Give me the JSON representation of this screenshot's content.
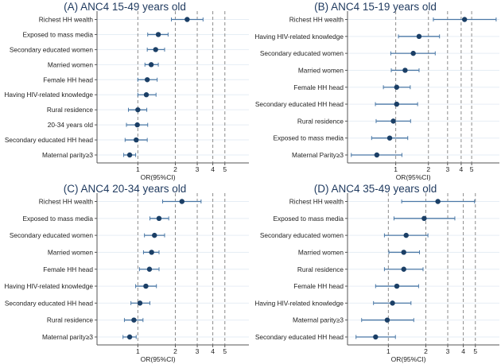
{
  "chart_data": [
    {
      "type": "forest",
      "title": "(A) ANC4 15-49 years old",
      "xlabel": "OR(95%CI)",
      "xscale": "log",
      "xticks": [
        1,
        2,
        3,
        4,
        5
      ],
      "xlim": [
        0.47,
        7.8
      ],
      "reference_lines": [
        1,
        2,
        3,
        4,
        5
      ],
      "rows": [
        {
          "label": "Richest HH wealth",
          "or": 2.49,
          "lo": 1.86,
          "hi": 3.34
        },
        {
          "label": "Exposed to mass media",
          "or": 1.46,
          "lo": 1.2,
          "hi": 1.75
        },
        {
          "label": "Secondary educated women",
          "or": 1.39,
          "lo": 1.19,
          "hi": 1.64
        },
        {
          "label": "Married women",
          "or": 1.28,
          "lo": 1.14,
          "hi": 1.46
        },
        {
          "label": "Female HH head",
          "or": 1.19,
          "lo": 1.0,
          "hi": 1.43
        },
        {
          "label": "Having HIV-related knowledge",
          "or": 1.17,
          "lo": 1.0,
          "hi": 1.4
        },
        {
          "label": "Rural residence",
          "or": 1.0,
          "lo": 0.84,
          "hi": 1.18
        },
        {
          "label": "20-34 years old",
          "or": 0.99,
          "lo": 0.81,
          "hi": 1.2
        },
        {
          "label": "Secondary educated HH head",
          "or": 0.97,
          "lo": 0.79,
          "hi": 1.19
        },
        {
          "label": "Maternal parity≥3",
          "or": 0.86,
          "lo": 0.77,
          "hi": 0.96
        }
      ]
    },
    {
      "type": "forest",
      "title": "(B) ANC4 15-19 years old",
      "xlabel": "OR(95%CI)",
      "xscale": "log",
      "xticks": [
        1,
        2,
        3,
        4,
        5
      ],
      "xlim": [
        0.36,
        9.0
      ],
      "reference_lines": [
        1,
        2,
        3,
        4,
        5
      ],
      "rows": [
        {
          "label": "Richest HH wealth",
          "or": 4.3,
          "lo": 2.22,
          "hi": 8.4
        },
        {
          "label": "Having HIV-related knowledge",
          "or": 1.64,
          "lo": 1.06,
          "hi": 2.53
        },
        {
          "label": "Secondary educated women",
          "or": 1.45,
          "lo": 0.9,
          "hi": 2.31
        },
        {
          "label": "Married women",
          "or": 1.22,
          "lo": 0.91,
          "hi": 1.64
        },
        {
          "label": "Female HH head",
          "or": 1.02,
          "lo": 0.77,
          "hi": 1.36
        },
        {
          "label": "Secondary educated HH head",
          "or": 1.02,
          "lo": 0.65,
          "hi": 1.59
        },
        {
          "label": "Rural residence",
          "or": 0.95,
          "lo": 0.66,
          "hi": 1.37
        },
        {
          "label": "Exposed to mass media",
          "or": 0.88,
          "lo": 0.6,
          "hi": 1.29
        },
        {
          "label": "Maternal Parity≥3",
          "or": 0.67,
          "lo": 0.39,
          "hi": 1.14
        }
      ]
    },
    {
      "type": "forest",
      "title": "(C) ANC4 20-34 years old",
      "xlabel": "OR(95%CI)",
      "xscale": "log",
      "xticks": [
        1,
        2,
        3,
        4,
        5
      ],
      "xlim": [
        0.47,
        7.8
      ],
      "reference_lines": [
        1,
        2,
        3,
        4,
        5
      ],
      "rows": [
        {
          "label": "Richest HH wealth",
          "or": 2.26,
          "lo": 1.58,
          "hi": 3.22
        },
        {
          "label": "Exposed to mass media",
          "or": 1.48,
          "lo": 1.25,
          "hi": 1.77
        },
        {
          "label": "Secondary educated women",
          "or": 1.36,
          "lo": 1.13,
          "hi": 1.64
        },
        {
          "label": "Married women",
          "or": 1.29,
          "lo": 1.11,
          "hi": 1.48
        },
        {
          "label": "Female HH head",
          "or": 1.24,
          "lo": 1.03,
          "hi": 1.48
        },
        {
          "label": "Having HIV-related knowledge",
          "or": 1.16,
          "lo": 0.96,
          "hi": 1.41
        },
        {
          "label": "Secondary educated HH head",
          "or": 1.04,
          "lo": 0.88,
          "hi": 1.25
        },
        {
          "label": "Rural residence",
          "or": 0.93,
          "lo": 0.78,
          "hi": 1.1
        },
        {
          "label": "Maternal parity≥3",
          "or": 0.86,
          "lo": 0.76,
          "hi": 0.97
        }
      ]
    },
    {
      "type": "forest",
      "title": "(D) ANC4 35-49 years old",
      "xlabel": "OR(95%CI)",
      "xscale": "log",
      "xticks": [
        1,
        2,
        3,
        4,
        5
      ],
      "xlim": [
        0.47,
        7.8
      ],
      "reference_lines": [
        1,
        2,
        3,
        4,
        5
      ],
      "rows": [
        {
          "label": "Richest HH wealth",
          "or": 2.5,
          "lo": 1.28,
          "hi": 4.93
        },
        {
          "label": "Exposed to mass media",
          "or": 1.94,
          "lo": 1.11,
          "hi": 3.42
        },
        {
          "label": "Secondary educated women",
          "or": 1.39,
          "lo": 0.93,
          "hi": 2.08
        },
        {
          "label": "Married women",
          "or": 1.33,
          "lo": 1.01,
          "hi": 1.78
        },
        {
          "label": "Rural residence",
          "or": 1.33,
          "lo": 0.93,
          "hi": 1.9
        },
        {
          "label": "Female HH head",
          "or": 1.17,
          "lo": 0.79,
          "hi": 1.75
        },
        {
          "label": "Having HIV-related knowledge",
          "or": 1.08,
          "lo": 0.76,
          "hi": 1.52
        },
        {
          "label": "Maternal parity≥3",
          "or": 0.98,
          "lo": 0.61,
          "hi": 1.6
        },
        {
          "label": "Secondary educated HH head",
          "or": 0.79,
          "lo": 0.55,
          "hi": 1.14
        }
      ]
    }
  ],
  "colors": {
    "title": "#1f3a5f",
    "marker": "#1b3f66",
    "ci_line": "#4a78a6",
    "ref_line": "#8c8c8c",
    "row_grid": "#e6eef5",
    "axis": "#555555",
    "text": "#222222"
  }
}
